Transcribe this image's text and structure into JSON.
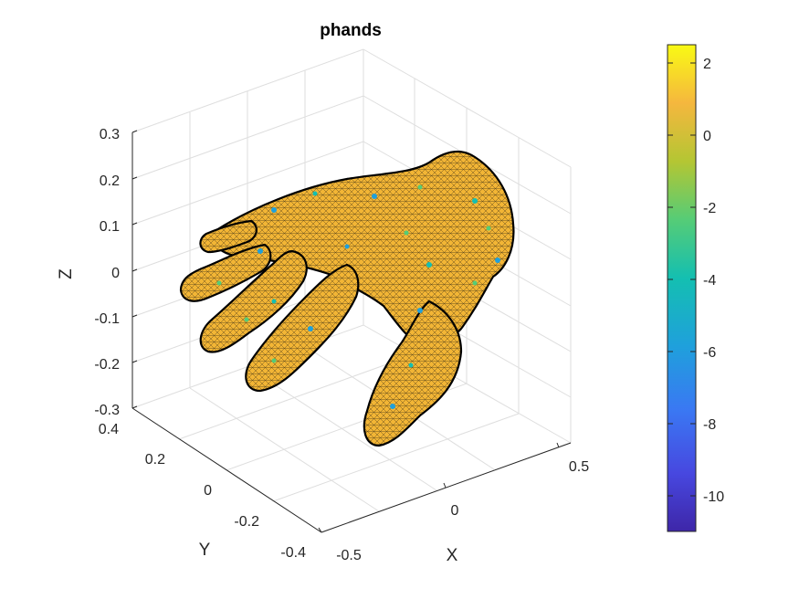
{
  "chart_data": {
    "type": "surface",
    "title": "phands",
    "xlabel": "X",
    "ylabel": "Y",
    "zlabel": "Z",
    "x_ticks": [
      "-0.5",
      "0",
      "0.5"
    ],
    "y_ticks": [
      "-0.4",
      "-0.2",
      "0",
      "0.2",
      "0.4"
    ],
    "z_ticks": [
      "-0.3",
      "-0.2",
      "-0.1",
      "0",
      "0.1",
      "0.2",
      "0.3"
    ],
    "xlim": [
      -0.5,
      0.5
    ],
    "ylim": [
      -0.4,
      0.4
    ],
    "zlim": [
      -0.3,
      0.3
    ],
    "grid": true,
    "colorbar": {
      "range": [
        -11,
        2.5
      ],
      "ticks": [
        "2",
        "0",
        "-2",
        "-4",
        "-6",
        "-8",
        "-10"
      ],
      "tick_values": [
        2,
        0,
        -2,
        -4,
        -6,
        -8,
        -10
      ],
      "colormap": "parula"
    },
    "surface_color": "#f2b535",
    "edge_color": "#000000"
  }
}
